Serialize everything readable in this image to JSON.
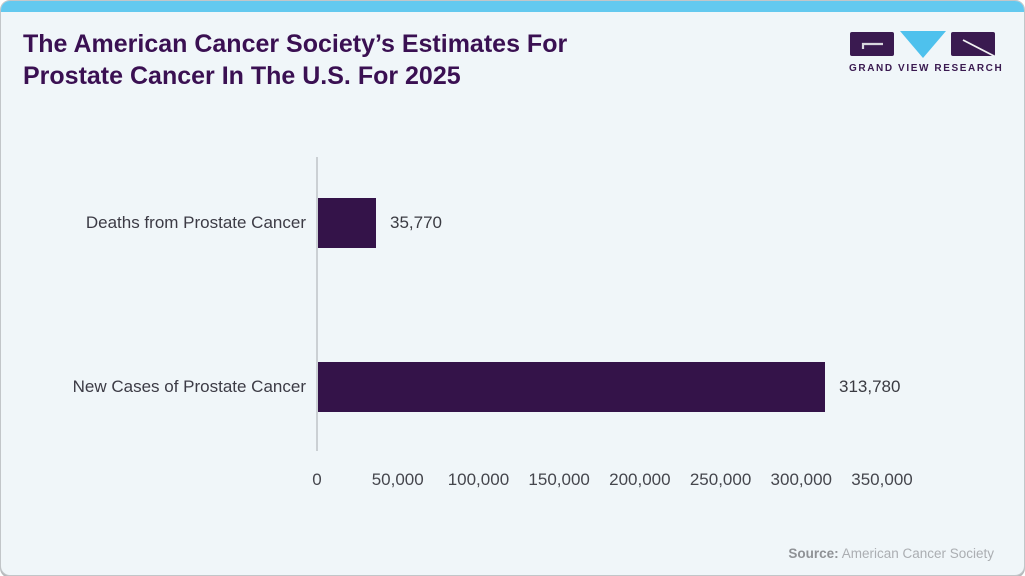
{
  "header": {
    "title_line1": "The American Cancer Society’s Estimates For",
    "title_line2": "Prostate Cancer In The U.S. For 2025"
  },
  "logo": {
    "text": "GRAND VIEW RESEARCH"
  },
  "chart_data": {
    "type": "bar",
    "orientation": "horizontal",
    "title": "The American Cancer Society’s Estimates For Prostate Cancer In The U.S. For 2025",
    "categories": [
      "Deaths from Prostate Cancer",
      "New Cases of Prostate Cancer"
    ],
    "values": [
      35770,
      313780
    ],
    "value_labels": [
      "35,770",
      "313,780"
    ],
    "xlabel": "",
    "ylabel": "",
    "xlim": [
      0,
      350000
    ],
    "x_ticks": [
      0,
      50000,
      100000,
      150000,
      200000,
      250000,
      300000,
      350000
    ],
    "x_tick_labels": [
      "0",
      "50,000",
      "100,000",
      "150,000",
      "200,000",
      "250,000",
      "300,000",
      "350,000"
    ],
    "grid": false,
    "legend": "none",
    "bar_color": "#341349"
  },
  "footer": {
    "source_label": "Source:",
    "source_text": "American Cancer Society"
  },
  "colors": {
    "card_background": "#f0f6f9",
    "top_accent": "#63c9ef",
    "title_purple": "#3a1052",
    "bar_purple": "#341349",
    "logo_purple": "#3a1a50",
    "logo_blue": "#4ec1ed",
    "axis_line": "#cbd0d4",
    "label_gray": "#3c3b45",
    "source_gray": "#abaeb2"
  }
}
